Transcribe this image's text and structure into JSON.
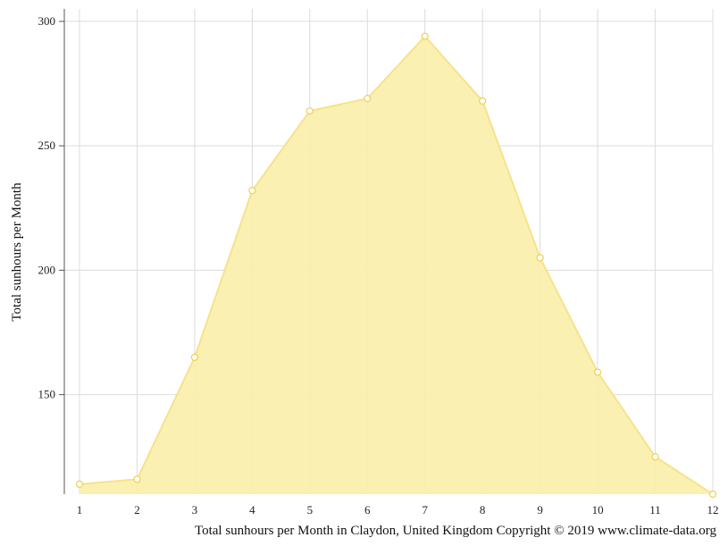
{
  "chart_data": {
    "type": "area",
    "title": "",
    "xlabel": "",
    "ylabel": "Total sunhours per Month",
    "caption": "Total sunhours per Month in Claydon, United Kingdom Copyright © 2019 www.climate-data.org",
    "x": [
      "1",
      "2",
      "3",
      "4",
      "5",
      "6",
      "7",
      "8",
      "9",
      "10",
      "11",
      "12"
    ],
    "series": [
      {
        "name": "",
        "values": [
          114,
          116,
          165,
          232,
          264,
          269,
          294,
          268,
          205,
          159,
          125,
          110
        ]
      }
    ],
    "y_ticks": [
      "150",
      "200",
      "250",
      "300"
    ],
    "ylim": [
      110,
      305
    ],
    "grid": true,
    "legend": "none",
    "colors": {
      "fill": "#f9eeaa",
      "line": "#f7e28a",
      "marker_fill": "#ffffff",
      "marker_stroke": "#f2cf4a"
    }
  }
}
